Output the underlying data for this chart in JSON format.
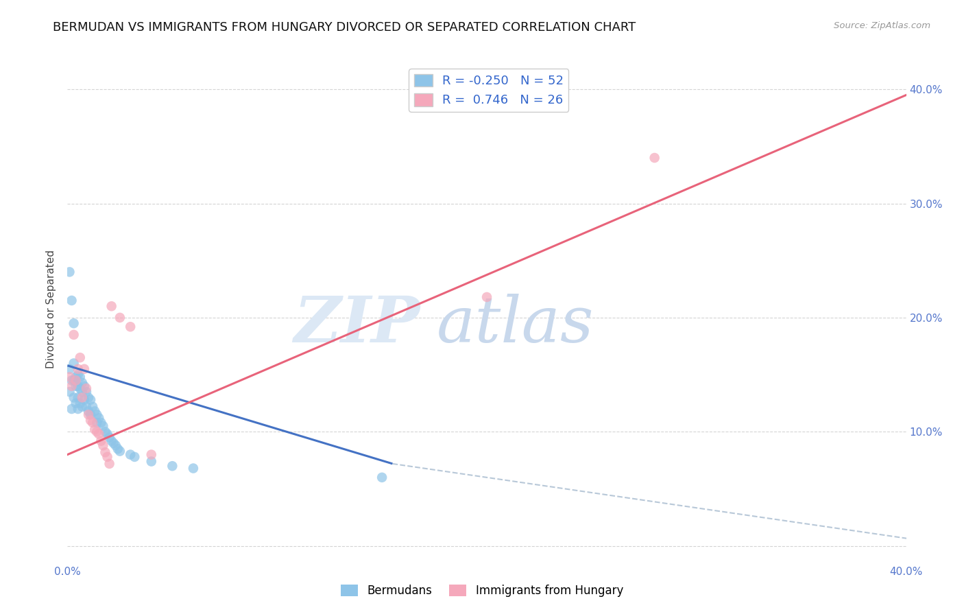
{
  "title": "BERMUDAN VS IMMIGRANTS FROM HUNGARY DIVORCED OR SEPARATED CORRELATION CHART",
  "source": "Source: ZipAtlas.com",
  "ylabel": "Divorced or Separated",
  "legend_R1": "-0.250",
  "legend_N1": "52",
  "legend_R2": "0.746",
  "legend_N2": "26",
  "legend_label1": "Bermudans",
  "legend_label2": "Immigrants from Hungary",
  "color_blue": "#8ec4e8",
  "color_pink": "#f5a8bb",
  "color_blue_line": "#4472c4",
  "color_pink_line": "#e8637a",
  "color_dashed": "#b8c8d8",
  "watermark_zip": "ZIP",
  "watermark_atlas": "atlas",
  "blue_x": [
    0.001,
    0.001,
    0.002,
    0.002,
    0.003,
    0.003,
    0.003,
    0.004,
    0.004,
    0.004,
    0.005,
    0.005,
    0.005,
    0.005,
    0.006,
    0.006,
    0.006,
    0.007,
    0.007,
    0.007,
    0.008,
    0.008,
    0.009,
    0.009,
    0.01,
    0.01,
    0.011,
    0.011,
    0.012,
    0.013,
    0.014,
    0.014,
    0.015,
    0.016,
    0.017,
    0.018,
    0.019,
    0.02,
    0.021,
    0.022,
    0.023,
    0.024,
    0.025,
    0.03,
    0.032,
    0.04,
    0.05,
    0.06,
    0.001,
    0.002,
    0.003,
    0.15
  ],
  "blue_y": [
    0.155,
    0.135,
    0.145,
    0.12,
    0.16,
    0.145,
    0.13,
    0.148,
    0.14,
    0.125,
    0.15,
    0.14,
    0.13,
    0.12,
    0.148,
    0.138,
    0.125,
    0.143,
    0.135,
    0.122,
    0.14,
    0.128,
    0.135,
    0.122,
    0.13,
    0.118,
    0.128,
    0.115,
    0.122,
    0.118,
    0.115,
    0.108,
    0.112,
    0.108,
    0.105,
    0.1,
    0.098,
    0.095,
    0.092,
    0.09,
    0.088,
    0.085,
    0.083,
    0.08,
    0.078,
    0.074,
    0.07,
    0.068,
    0.24,
    0.215,
    0.195,
    0.06
  ],
  "pink_x": [
    0.001,
    0.002,
    0.003,
    0.004,
    0.005,
    0.006,
    0.007,
    0.008,
    0.009,
    0.01,
    0.011,
    0.012,
    0.013,
    0.014,
    0.015,
    0.016,
    0.017,
    0.018,
    0.019,
    0.02,
    0.021,
    0.025,
    0.03,
    0.04,
    0.28,
    0.2
  ],
  "pink_y": [
    0.148,
    0.14,
    0.185,
    0.145,
    0.155,
    0.165,
    0.13,
    0.155,
    0.138,
    0.115,
    0.11,
    0.108,
    0.102,
    0.1,
    0.098,
    0.092,
    0.088,
    0.082,
    0.078,
    0.072,
    0.21,
    0.2,
    0.192,
    0.08,
    0.34,
    0.218
  ],
  "blue_line_x": [
    0.0,
    0.155
  ],
  "blue_line_y": [
    0.158,
    0.072
  ],
  "dashed_line_x": [
    0.155,
    0.5
  ],
  "dashed_line_y": [
    0.072,
    -0.02
  ],
  "pink_line_x": [
    0.0,
    0.4
  ],
  "pink_line_y": [
    0.08,
    0.395
  ],
  "xlim": [
    0.0,
    0.4
  ],
  "ylim": [
    -0.015,
    0.43
  ],
  "x_ticks": [
    0.0,
    0.05,
    0.1,
    0.15,
    0.2,
    0.25,
    0.3,
    0.35,
    0.4
  ],
  "x_tick_labels": [
    "0.0%",
    "",
    "",
    "",
    "",
    "",
    "",
    "",
    "40.0%"
  ],
  "y_ticks": [
    0.0,
    0.1,
    0.2,
    0.3,
    0.4
  ],
  "y_tick_labels_right": [
    "",
    "10.0%",
    "20.0%",
    "30.0%",
    "40.0%"
  ],
  "grid_color": "#d0d0d0",
  "title_fontsize": 13,
  "tick_color": "#5577cc"
}
